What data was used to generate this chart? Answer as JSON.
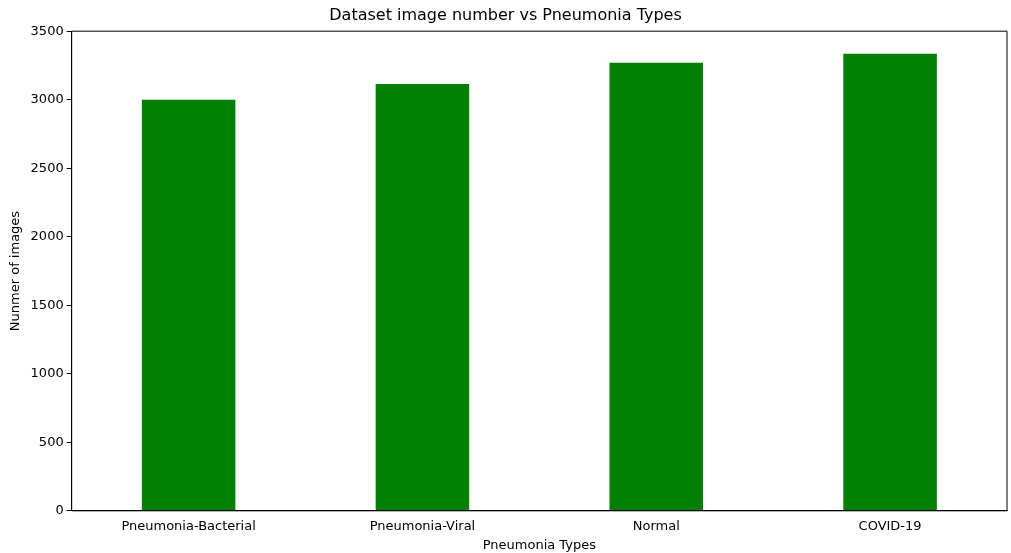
{
  "chart_data": {
    "type": "bar",
    "title": "Dataset image number vs Pneumonia Types",
    "xlabel": "Pneumonia Types",
    "ylabel": "Nunmer of images",
    "categories": [
      "Pneumonia-Bacterial",
      "Pneumonia-Viral",
      "Normal",
      "COVID-19"
    ],
    "values": [
      3000,
      3115,
      3270,
      3335
    ],
    "color": "#008000",
    "ylim": [
      0,
      3500
    ],
    "yticks": [
      0,
      500,
      1000,
      1500,
      2000,
      2500,
      3000,
      3500
    ],
    "grid": false,
    "legend": false
  }
}
